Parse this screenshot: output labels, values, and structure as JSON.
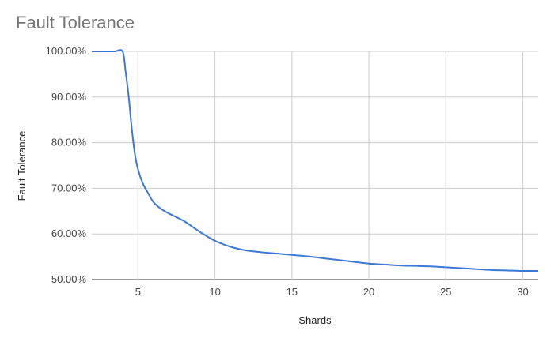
{
  "chart_data": {
    "type": "line",
    "title": "Fault Tolerance",
    "xlabel": "Shards",
    "ylabel": "Fault Tolerance",
    "xlim": [
      2,
      31
    ],
    "ylim": [
      0.5,
      1.0
    ],
    "x_ticks": [
      5,
      10,
      15,
      20,
      25,
      30
    ],
    "x_tick_labels": [
      "5",
      "10",
      "15",
      "20",
      "25",
      "30"
    ],
    "y_ticks": [
      0.5,
      0.6,
      0.7,
      0.8,
      0.9,
      1.0
    ],
    "y_tick_labels": [
      "50.00%",
      "60.00%",
      "70.00%",
      "80.00%",
      "90.00%",
      "100.00%"
    ],
    "grid": true,
    "legend": "none",
    "series": [
      {
        "color": "#3c78d8",
        "x": [
          2,
          3,
          3.5,
          4,
          4.2,
          4.4,
          4.6,
          4.8,
          5,
          5.3,
          5.6,
          6,
          6.5,
          7,
          8,
          9,
          10,
          11,
          12,
          13,
          14,
          15,
          16,
          17,
          18,
          19,
          20,
          21,
          22,
          23,
          24,
          25,
          26,
          27,
          28,
          29,
          30,
          31
        ],
        "y": [
          1.0,
          1.0,
          1.0,
          1.0,
          0.955,
          0.9,
          0.83,
          0.775,
          0.742,
          0.712,
          0.693,
          0.67,
          0.655,
          0.645,
          0.628,
          0.605,
          0.585,
          0.572,
          0.564,
          0.56,
          0.557,
          0.554,
          0.551,
          0.547,
          0.543,
          0.539,
          0.535,
          0.533,
          0.531,
          0.53,
          0.529,
          0.527,
          0.525,
          0.523,
          0.521,
          0.52,
          0.519,
          0.519
        ]
      }
    ]
  }
}
